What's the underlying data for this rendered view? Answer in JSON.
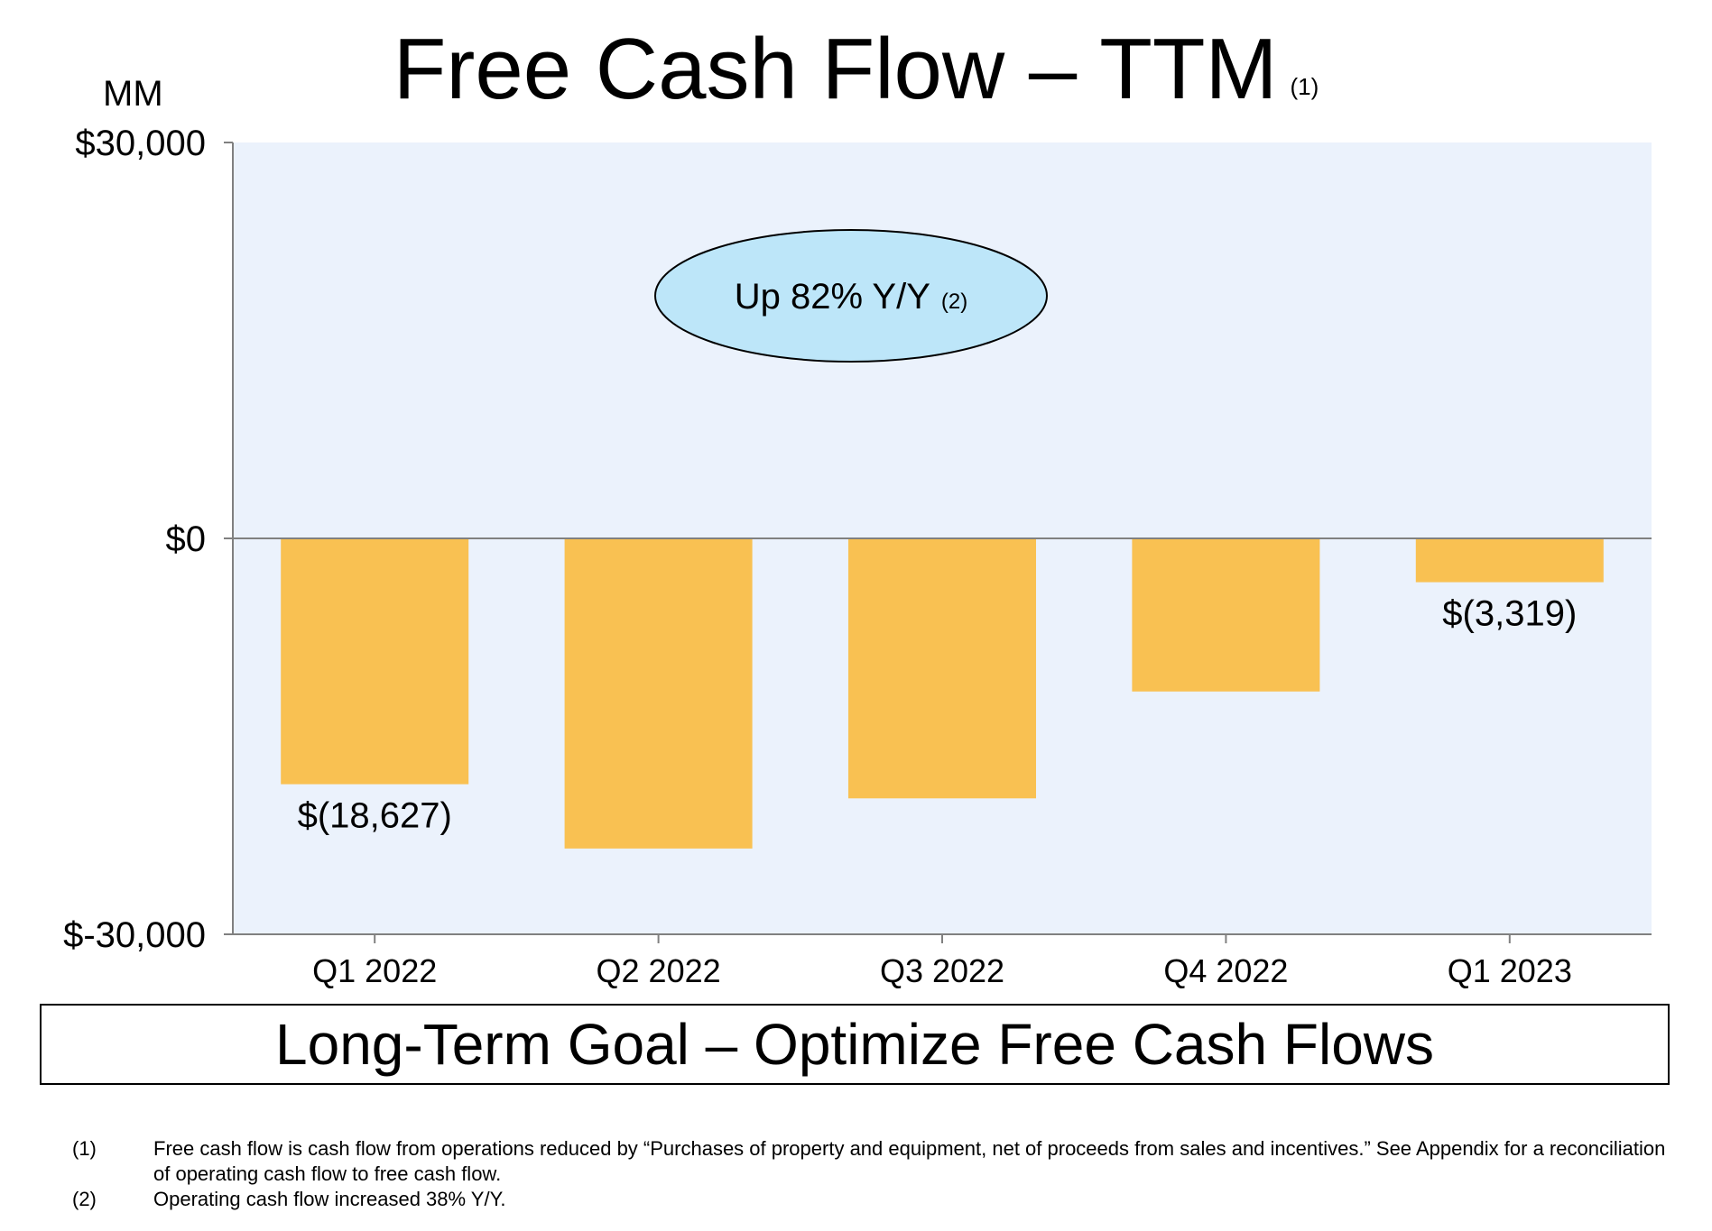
{
  "title": {
    "text": "Free Cash Flow – TTM",
    "footnote_ref": "(1)"
  },
  "unit_label": "MM",
  "callout": {
    "text": "Up 82% Y/Y",
    "footnote_ref": "(2)"
  },
  "goal_text": "Long-Term Goal – Optimize Free Cash Flows",
  "footnotes": [
    {
      "mark": "(1)",
      "text": "Free cash flow is cash flow from operations reduced by “Purchases of property and equipment, net of proceeds from sales and incentives.” See Appendix for a reconciliation of operating cash flow to free cash flow."
    },
    {
      "mark": "(2)",
      "text": "Operating cash flow increased 38% Y/Y."
    }
  ],
  "colors": {
    "bar": "#F9C152",
    "plot_bg": "#EBF2FC",
    "callout_fill": "#BDE6F9",
    "axis": "#808080"
  },
  "chart_data": {
    "type": "bar",
    "title": "Free Cash Flow – TTM",
    "ylabel": "MM",
    "categories": [
      "Q1 2022",
      "Q2 2022",
      "Q3 2022",
      "Q4 2022",
      "Q1 2023"
    ],
    "values": [
      -18627,
      -23500,
      -19700,
      -11600,
      -3319
    ],
    "data_labels": [
      "$(18,627)",
      "",
      "",
      "",
      "$(3,319)"
    ],
    "yticks": [
      30000,
      0,
      -30000
    ],
    "ytick_labels": [
      "$30,000",
      "$0",
      "$-30,000"
    ],
    "ylim": [
      -30000,
      30000
    ],
    "grid": false,
    "annotation": "Up 82% Y/Y (2)"
  }
}
